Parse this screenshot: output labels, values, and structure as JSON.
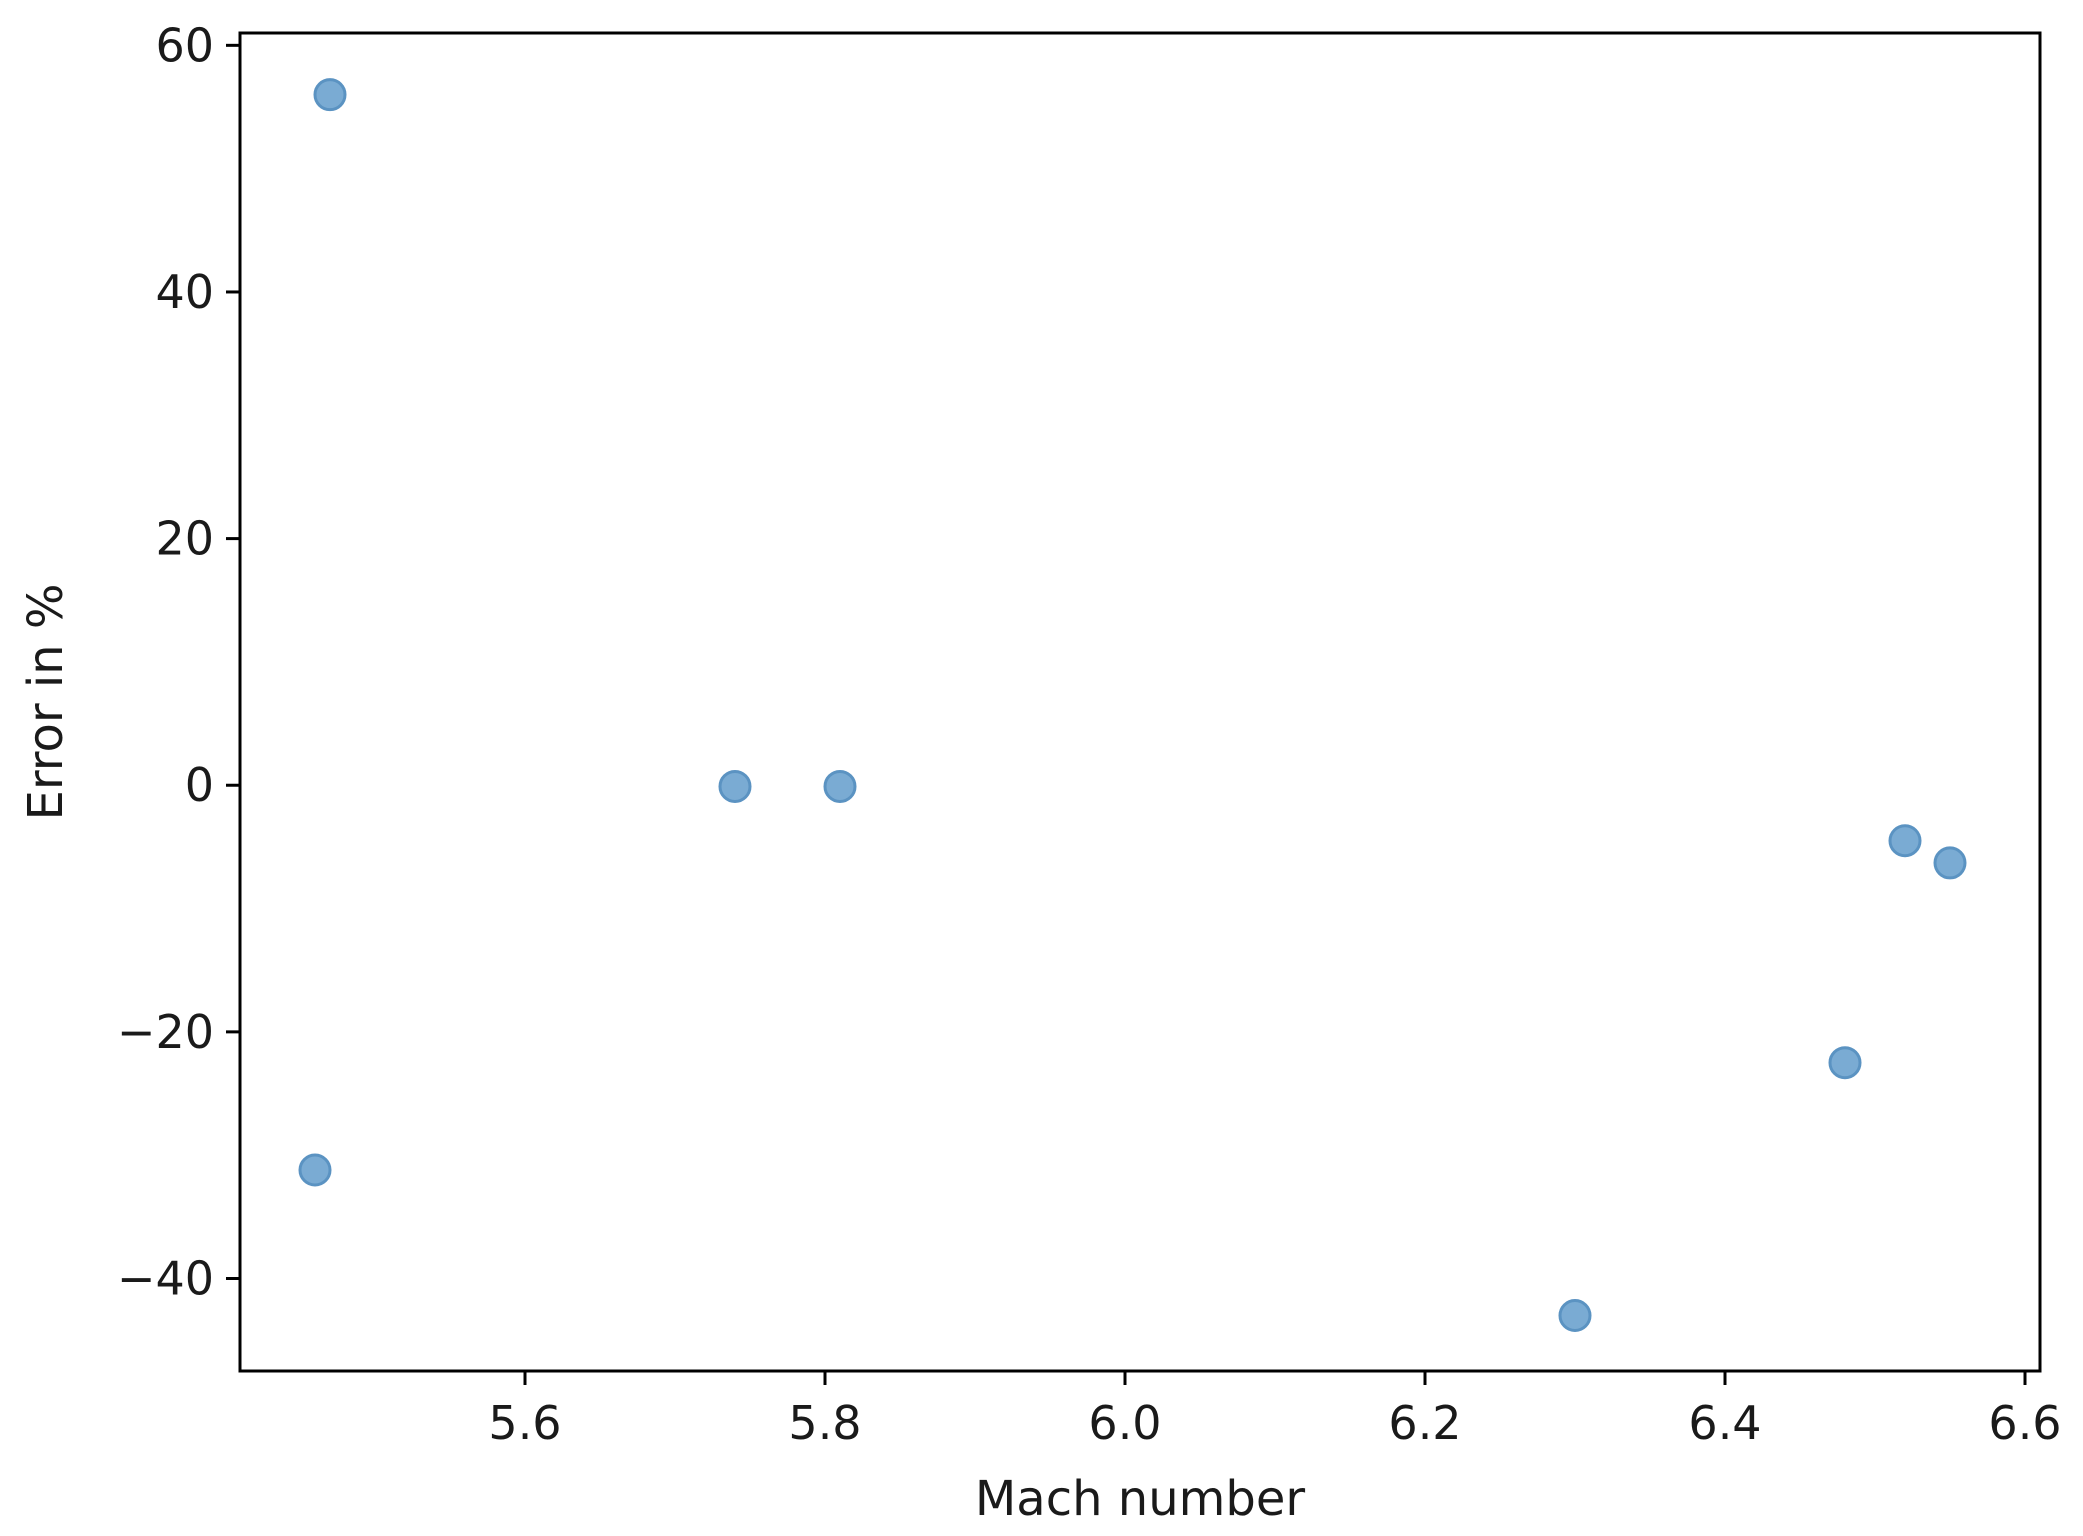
{
  "chart_data": {
    "type": "scatter",
    "title": "",
    "xlabel": "Mach number",
    "ylabel": "Error in %",
    "xlim": [
      5.41,
      6.61
    ],
    "ylim": [
      -47.5,
      61
    ],
    "xticks": [
      5.6,
      5.8,
      6.0,
      6.2,
      6.4,
      6.6
    ],
    "xtick_labels": [
      "5.6",
      "5.8",
      "6.0",
      "6.2",
      "6.4",
      "6.6"
    ],
    "yticks": [
      60,
      40,
      20,
      0,
      -20,
      -40
    ],
    "ytick_labels": [
      "60",
      "40",
      "20",
      "0",
      "−20",
      "−40"
    ],
    "grid": false,
    "legend": "none",
    "marker_color": "#7aabd3",
    "marker_edge_color": "#5b93c2",
    "series": [
      {
        "x": [
          5.47,
          5.46,
          5.74,
          5.81,
          6.3,
          6.48,
          6.52,
          6.55
        ],
        "y": [
          56.0,
          -31.2,
          -0.1,
          -0.1,
          -43.0,
          -22.5,
          -4.5,
          -6.3
        ]
      }
    ]
  }
}
